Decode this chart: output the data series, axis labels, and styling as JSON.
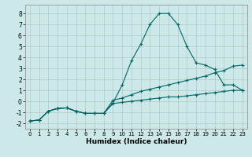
{
  "xlabel": "Humidex (Indice chaleur)",
  "bg_color": "#cce8e8",
  "grid_color": "#b0c8c8",
  "line_color": "#006666",
  "xlim": [
    -0.5,
    23.5
  ],
  "ylim": [
    -2.5,
    8.8
  ],
  "yticks": [
    -2,
    -1,
    0,
    1,
    2,
    3,
    4,
    5,
    6,
    7,
    8
  ],
  "xticks": [
    0,
    1,
    2,
    3,
    4,
    5,
    6,
    7,
    8,
    9,
    10,
    11,
    12,
    13,
    14,
    15,
    16,
    17,
    18,
    19,
    20,
    21,
    22,
    23
  ],
  "line1_x": [
    0,
    1,
    2,
    3,
    4,
    5,
    6,
    7,
    8,
    9,
    10,
    11,
    12,
    13,
    14,
    15,
    16,
    17,
    18,
    19,
    20,
    21,
    22,
    23
  ],
  "line1_y": [
    -1.8,
    -1.7,
    -0.9,
    -0.65,
    -0.6,
    -0.9,
    -1.1,
    -1.1,
    -1.1,
    -0.15,
    1.5,
    3.7,
    5.2,
    7.0,
    8.0,
    8.0,
    7.0,
    5.0,
    3.5,
    3.3,
    2.9,
    1.5,
    1.5,
    1.0
  ],
  "line2_x": [
    0,
    1,
    2,
    3,
    4,
    5,
    6,
    7,
    8,
    9,
    10,
    11,
    12,
    13,
    14,
    15,
    16,
    17,
    18,
    19,
    20,
    21,
    22,
    23
  ],
  "line2_y": [
    -1.8,
    -1.7,
    -0.9,
    -0.65,
    -0.6,
    -0.9,
    -1.1,
    -1.1,
    -1.1,
    0.1,
    0.3,
    0.6,
    0.9,
    1.1,
    1.3,
    1.5,
    1.7,
    1.9,
    2.1,
    2.3,
    2.6,
    2.8,
    3.2,
    3.3
  ],
  "line3_x": [
    0,
    1,
    2,
    3,
    4,
    5,
    6,
    7,
    8,
    9,
    10,
    11,
    12,
    13,
    14,
    15,
    16,
    17,
    18,
    19,
    20,
    21,
    22,
    23
  ],
  "line3_y": [
    -1.8,
    -1.7,
    -0.9,
    -0.65,
    -0.6,
    -0.9,
    -1.1,
    -1.1,
    -1.1,
    -0.2,
    -0.1,
    0.0,
    0.1,
    0.2,
    0.3,
    0.4,
    0.4,
    0.5,
    0.6,
    0.7,
    0.8,
    0.9,
    1.0,
    1.0
  ]
}
